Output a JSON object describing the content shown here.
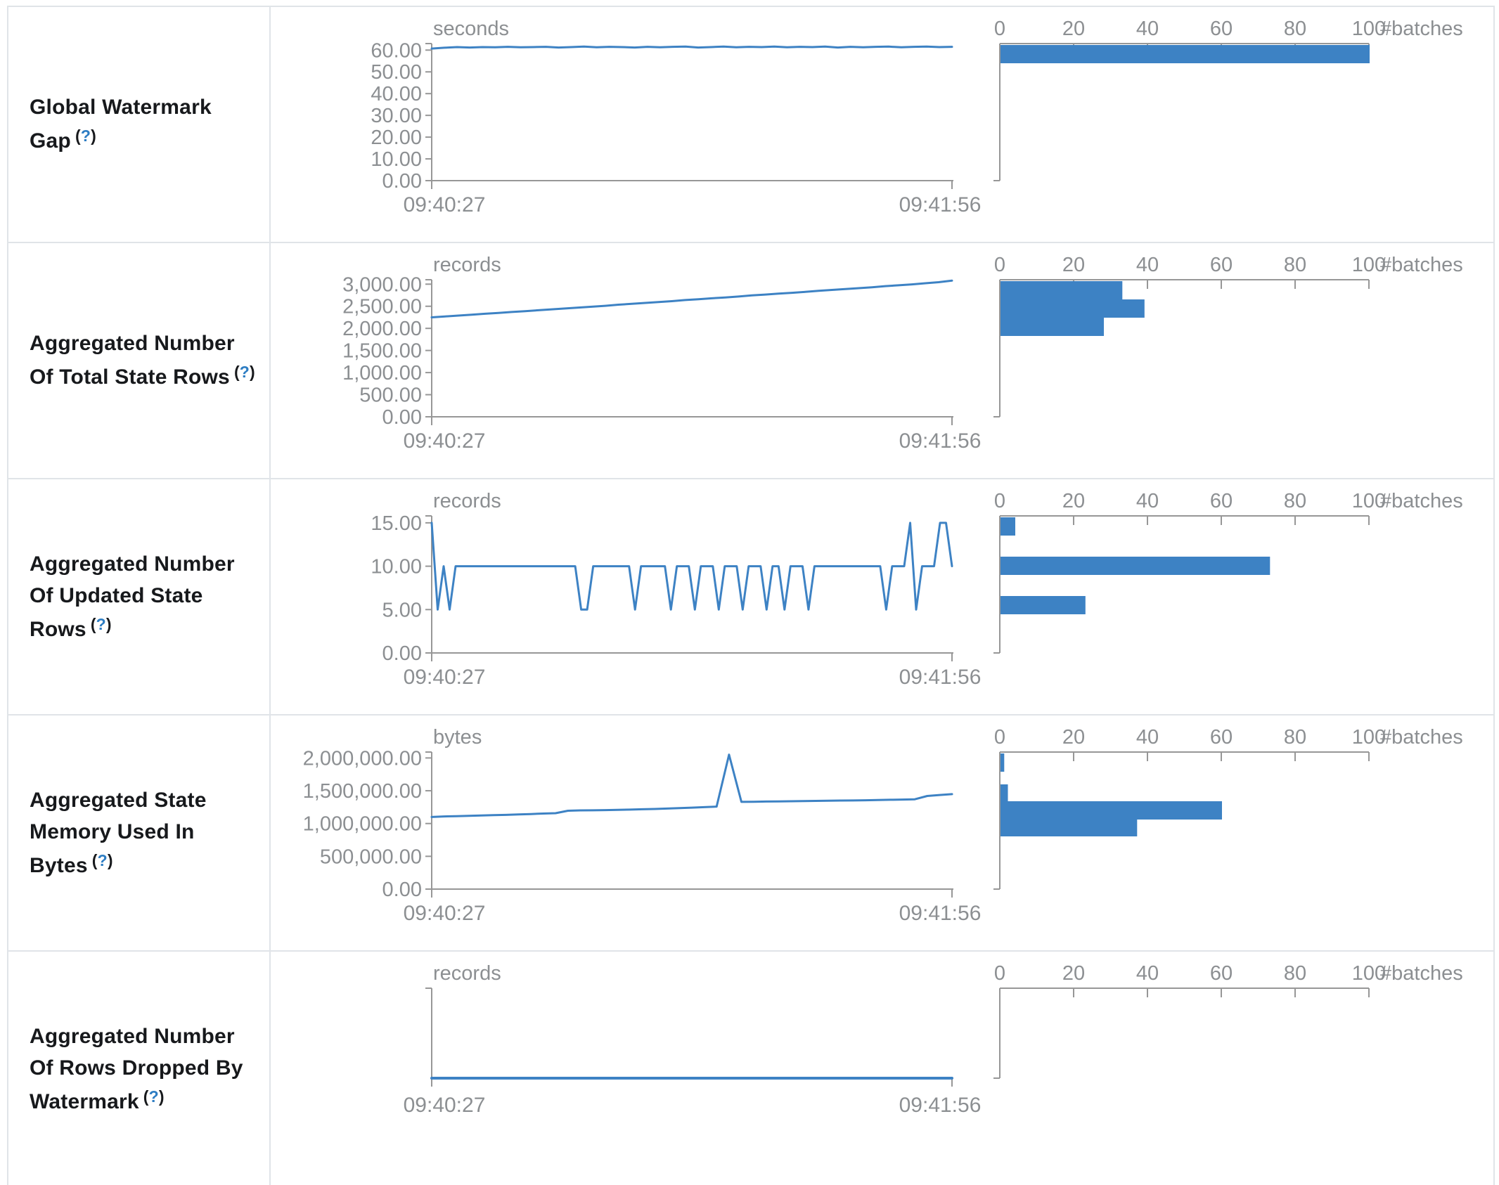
{
  "accent": "#3d82c4",
  "axis_color": "#979797",
  "muted_text_color": "#8c8f92",
  "label_text_color": "#17191c",
  "help_color": "#2d7dc3",
  "x_axis": {
    "start": "09:40:27",
    "end": "09:41:56"
  },
  "histogram_axis": {
    "ticks": [
      0,
      20,
      40,
      60,
      80,
      100
    ],
    "unit": "#batches"
  },
  "chart_data": [
    {
      "type": "line",
      "label": "Global Watermark Gap",
      "help_open": "(",
      "help_q": "?",
      "help_close": ")",
      "unit": "seconds",
      "x_start": "09:40:27",
      "x_end": "09:41:56",
      "ymax": 63,
      "y_ticks": [
        {
          "label": "60.00",
          "v": 60
        },
        {
          "label": "50.00",
          "v": 50
        },
        {
          "label": "40.00",
          "v": 40
        },
        {
          "label": "30.00",
          "v": 30
        },
        {
          "label": "20.00",
          "v": 20
        },
        {
          "label": "10.00",
          "v": 10
        },
        {
          "label": "0.00",
          "v": 0
        }
      ],
      "values": [
        60.7,
        61.1,
        61.4,
        61.2,
        61.4,
        61.3,
        61.5,
        61.3,
        61.4,
        61.5,
        61.2,
        61.4,
        61.6,
        61.3,
        61.5,
        61.4,
        61.2,
        61.5,
        61.3,
        61.5,
        61.6,
        61.2,
        61.4,
        61.6,
        61.3,
        61.5,
        61.4,
        61.6,
        61.3,
        61.5,
        61.4,
        61.6,
        61.2,
        61.5,
        61.3,
        61.5,
        61.6,
        61.3,
        61.5,
        61.6,
        61.4,
        61.5
      ],
      "histogram": {
        "type": "bar",
        "unit": "#batches",
        "ticks": [
          0,
          20,
          40,
          60,
          80,
          100
        ],
        "bars": [
          {
            "value": 100,
            "y": 2
          }
        ]
      }
    },
    {
      "type": "line",
      "label": "Aggregated Number Of Total State Rows",
      "help_open": "(",
      "help_q": "?",
      "help_close": ")",
      "unit": "records",
      "x_start": "09:40:27",
      "x_end": "09:41:56",
      "ymax": 3100,
      "y_ticks": [
        {
          "label": "3,000.00",
          "v": 3000
        },
        {
          "label": "2,500.00",
          "v": 2500
        },
        {
          "label": "2,000.00",
          "v": 2000
        },
        {
          "label": "1,500.00",
          "v": 1500
        },
        {
          "label": "1,000.00",
          "v": 1000
        },
        {
          "label": "500.00",
          "v": 500
        },
        {
          "label": "0.00",
          "v": 0
        }
      ],
      "values": [
        2250,
        2270,
        2290,
        2310,
        2330,
        2350,
        2370,
        2390,
        2410,
        2430,
        2450,
        2470,
        2490,
        2510,
        2535,
        2555,
        2575,
        2595,
        2615,
        2640,
        2660,
        2680,
        2700,
        2720,
        2745,
        2765,
        2785,
        2805,
        2825,
        2850,
        2870,
        2890,
        2910,
        2930,
        2955,
        2975,
        2995,
        3020,
        3045,
        3080
      ],
      "histogram": {
        "type": "bar",
        "unit": "#batches",
        "ticks": [
          0,
          20,
          40,
          60,
          80,
          100
        ],
        "bars": [
          {
            "value": 33,
            "y": 2
          },
          {
            "value": 39,
            "y": 28
          },
          {
            "value": 28,
            "y": 54
          }
        ]
      }
    },
    {
      "type": "line",
      "label": "Aggregated Number Of Updated State Rows",
      "help_open": "(",
      "help_q": "?",
      "help_close": ")",
      "unit": "records",
      "x_start": "09:40:27",
      "x_end": "09:41:56",
      "ymax": 15.8,
      "y_ticks": [
        {
          "label": "15.00",
          "v": 15
        },
        {
          "label": "10.00",
          "v": 10
        },
        {
          "label": "5.00",
          "v": 5
        },
        {
          "label": "0.00",
          "v": 0
        }
      ],
      "values": [
        15,
        5,
        10,
        5,
        10,
        10,
        10,
        10,
        10,
        10,
        10,
        10,
        10,
        10,
        10,
        10,
        10,
        10,
        10,
        10,
        10,
        10,
        10,
        10,
        10,
        5,
        5,
        10,
        10,
        10,
        10,
        10,
        10,
        10,
        5,
        10,
        10,
        10,
        10,
        10,
        5,
        10,
        10,
        10,
        5,
        10,
        10,
        10,
        5,
        10,
        10,
        10,
        5,
        10,
        10,
        10,
        5,
        10,
        10,
        5,
        10,
        10,
        10,
        5,
        10,
        10,
        10,
        10,
        10,
        10,
        10,
        10,
        10,
        10,
        10,
        10,
        5,
        10,
        10,
        10,
        15,
        5,
        10,
        10,
        10,
        15,
        15,
        10
      ],
      "histogram": {
        "type": "bar",
        "unit": "#batches",
        "ticks": [
          0,
          20,
          40,
          60,
          80,
          100
        ],
        "bars": [
          {
            "value": 4,
            "y": 2
          },
          {
            "value": 73,
            "y": 58
          },
          {
            "value": 23,
            "y": 114
          }
        ]
      }
    },
    {
      "type": "line",
      "label": "Aggregated State Memory Used In Bytes",
      "help_open": "(",
      "help_q": "?",
      "help_close": ")",
      "unit": "bytes",
      "x_start": "09:40:27",
      "x_end": "09:41:56",
      "ymax": 2090000,
      "y_ticks": [
        {
          "label": "2,000,000.00",
          "v": 2000000
        },
        {
          "label": "1,500,000.00",
          "v": 1500000
        },
        {
          "label": "1,000,000.00",
          "v": 1000000
        },
        {
          "label": "500,000.00",
          "v": 500000
        },
        {
          "label": "0.00",
          "v": 0
        }
      ],
      "values": [
        1100000,
        1108000,
        1112000,
        1118000,
        1122000,
        1128000,
        1132000,
        1138000,
        1145000,
        1152000,
        1158000,
        1195000,
        1200000,
        1202000,
        1205000,
        1208000,
        1212000,
        1218000,
        1222000,
        1228000,
        1235000,
        1242000,
        1250000,
        1258000,
        2050000,
        1330000,
        1332000,
        1335000,
        1338000,
        1340000,
        1342000,
        1345000,
        1348000,
        1350000,
        1352000,
        1355000,
        1358000,
        1362000,
        1365000,
        1370000,
        1420000,
        1435000,
        1448000
      ],
      "histogram": {
        "type": "bar",
        "unit": "#batches",
        "ticks": [
          0,
          20,
          40,
          60,
          80,
          100
        ],
        "bars": [
          {
            "value": 1,
            "y": 2
          },
          {
            "value": 2,
            "y": 46
          },
          {
            "value": 60,
            "y": 70
          },
          {
            "value": 37,
            "y": 94
          }
        ]
      }
    },
    {
      "type": "line",
      "label": "Aggregated Number Of Rows Dropped By Watermark",
      "help_open": "(",
      "help_q": "?",
      "help_close": ")",
      "unit": "records",
      "x_start": "09:40:27",
      "x_end": "09:41:56",
      "ymax": 1,
      "short": true,
      "y_ticks": [],
      "values": [
        0,
        0,
        0,
        0,
        0,
        0,
        0,
        0,
        0,
        0
      ],
      "histogram": {
        "type": "bar",
        "unit": "#batches",
        "ticks": [
          0,
          20,
          40,
          60,
          80,
          100
        ],
        "bars": []
      }
    }
  ]
}
